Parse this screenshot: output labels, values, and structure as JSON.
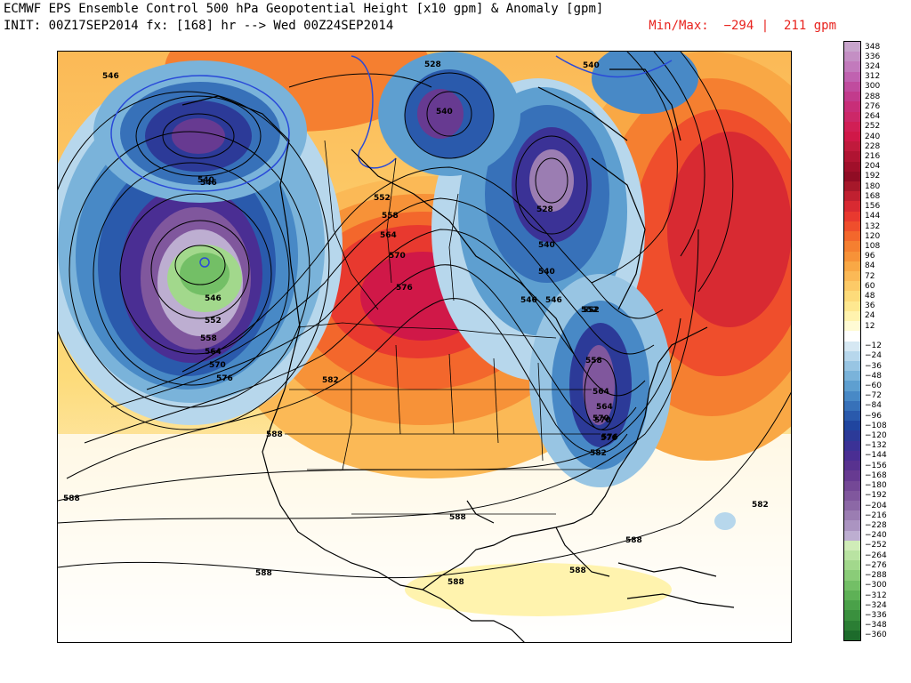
{
  "header": {
    "title": "ECMWF EPS Ensemble Control 500 hPa Geopotential Height [x10 gpm] & Anomaly [gpm]",
    "init_line": "INIT: 00Z17SEP2014 fx: [168] hr --> Wed 00Z24SEP2014",
    "minmax": "Min/Max:  −294 |  211 gpm"
  },
  "colorbar": {
    "labels": [
      "348",
      "336",
      "324",
      "312",
      "300",
      "288",
      "276",
      "264",
      "252",
      "240",
      "228",
      "216",
      "204",
      "192",
      "180",
      "168",
      "156",
      "144",
      "132",
      "120",
      "108",
      "96",
      "84",
      "72",
      "60",
      "48",
      "36",
      "24",
      "12",
      "",
      "−12",
      "−24",
      "−36",
      "−48",
      "−60",
      "−72",
      "−84",
      "−96",
      "−108",
      "−120",
      "−132",
      "−144",
      "−156",
      "−168",
      "−180",
      "−192",
      "−204",
      "−216",
      "−228",
      "−240",
      "−252",
      "−264",
      "−276",
      "−288",
      "−300",
      "−312",
      "−324",
      "−336",
      "−348",
      "−360"
    ],
    "colors": [
      "#c8a4cc",
      "#c48fc4",
      "#c27abc",
      "#c062b0",
      "#c04c9e",
      "#c23b8c",
      "#c82e78",
      "#cc2868",
      "#d11f55",
      "#d01848",
      "#c01a3c",
      "#b01432",
      "#a00f2a",
      "#900c24",
      "#a6182a",
      "#c02030",
      "#d82a32",
      "#e8392f",
      "#ef4e2c",
      "#f3672c",
      "#f57f30",
      "#f79238",
      "#f9a845",
      "#fbb956",
      "#fcca67",
      "#fddb7a",
      "#fee890",
      "#fff3ae",
      "#fffbd4",
      "#ffffff",
      "#d6e8f3",
      "#b7d7ec",
      "#98c5e3",
      "#7ab3da",
      "#5e9fd0",
      "#4889c6",
      "#3771b9",
      "#2a5aac",
      "#20459f",
      "#2c3a98",
      "#3b3296",
      "#4a2e93",
      "#58328f",
      "#673a91",
      "#744896",
      "#80579d",
      "#8c68a6",
      "#9b7db2",
      "#ab94c1",
      "#bdaed1",
      "#d0ecb8",
      "#b9e3a2",
      "#a2d88c",
      "#8acc78",
      "#73bf66",
      "#5eb156",
      "#4aa149",
      "#3a903e",
      "#2b7e34",
      "#1d6b2b"
    ]
  },
  "contour_labels": [
    {
      "text": "546"
    },
    {
      "text": "546"
    },
    {
      "text": "546"
    },
    {
      "text": "552"
    },
    {
      "text": "558"
    },
    {
      "text": "564"
    },
    {
      "text": "570"
    },
    {
      "text": "576"
    },
    {
      "text": "528"
    },
    {
      "text": "540"
    },
    {
      "text": "540"
    },
    {
      "text": "552"
    },
    {
      "text": "558"
    },
    {
      "text": "564"
    },
    {
      "text": "570"
    },
    {
      "text": "576"
    },
    {
      "text": "582"
    },
    {
      "text": "528"
    },
    {
      "text": "540"
    },
    {
      "text": "546"
    },
    {
      "text": "552"
    },
    {
      "text": "558"
    },
    {
      "text": "564"
    },
    {
      "text": "570"
    },
    {
      "text": "576"
    },
    {
      "text": "582"
    },
    {
      "text": "588"
    },
    {
      "text": "588"
    },
    {
      "text": "588"
    },
    {
      "text": "588"
    },
    {
      "text": "588"
    },
    {
      "text": "588"
    },
    {
      "text": "588"
    },
    {
      "text": "582"
    },
    {
      "text": "540"
    },
    {
      "text": "552"
    },
    {
      "text": "546"
    },
    {
      "text": "540"
    },
    {
      "text": "564"
    },
    {
      "text": "570"
    },
    {
      "text": "576"
    }
  ]
}
